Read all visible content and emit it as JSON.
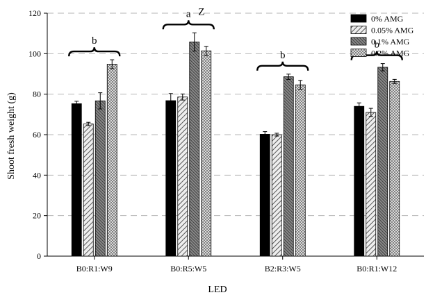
{
  "chart_data": {
    "type": "bar",
    "title": "",
    "xlabel": "LED",
    "ylabel": "Shoot fresh weight (g)",
    "ylim": [
      0,
      120
    ],
    "yticks": [
      0,
      20,
      40,
      60,
      80,
      100,
      120
    ],
    "grid": "horizontal dashed",
    "legend_position": "top-right",
    "categories": [
      "B0:R1:W9",
      "B0:R5:W5",
      "B2:R3:W5",
      "B0:R1:W12"
    ],
    "series": [
      {
        "name": "0% AMG",
        "pattern": "solid-black",
        "values": [
          75.3,
          76.8,
          60.2,
          74.0
        ],
        "errors": [
          1.2,
          3.5,
          1.3,
          1.7
        ]
      },
      {
        "name": "0.05% AMG",
        "pattern": "diagonal",
        "values": [
          65.3,
          78.6,
          60.0,
          71.0
        ],
        "errors": [
          0.8,
          1.5,
          0.7,
          2.0
        ]
      },
      {
        "name": "0.1% AMG",
        "pattern": "dense-diagonal",
        "values": [
          76.7,
          105.8,
          88.6,
          93.3
        ],
        "errors": [
          4.0,
          4.5,
          1.3,
          1.8
        ]
      },
      {
        "name": "0.2% AMG",
        "pattern": "crosshatch",
        "values": [
          94.8,
          101.4,
          84.6,
          86.3
        ],
        "errors": [
          2.2,
          2.2,
          2.2,
          1.0
        ]
      }
    ],
    "annotations": [
      {
        "category": "B0:R1:W9",
        "text": "b"
      },
      {
        "category": "B0:R5:W5",
        "text": "a"
      },
      {
        "category": "B2:R3:W5",
        "text": "b"
      },
      {
        "category": "B0:R1:W12",
        "text": "b"
      }
    ],
    "extra_annotation": "Z"
  }
}
